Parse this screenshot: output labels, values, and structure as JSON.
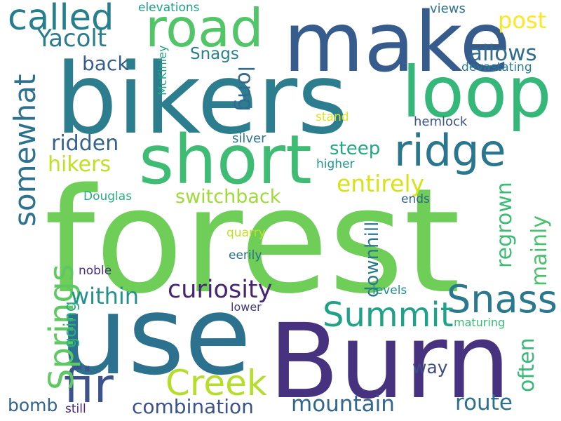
{
  "words": [
    {
      "text": "forest",
      "color": "#6ece58"
    },
    {
      "text": "bikers",
      "color": "#2c7e8e"
    },
    {
      "text": "Burn",
      "color": "#46327e"
    },
    {
      "text": "use",
      "color": "#2c728e"
    },
    {
      "text": "make",
      "color": "#365c8d"
    },
    {
      "text": "loop",
      "color": "#35b779"
    },
    {
      "text": "short",
      "color": "#3ebc73"
    },
    {
      "text": "road",
      "color": "#52c569"
    },
    {
      "text": "ridge",
      "color": "#2a768e"
    },
    {
      "text": "called",
      "color": "#277f8e"
    },
    {
      "text": "fir",
      "color": "#3b528b"
    },
    {
      "text": "Creek",
      "color": "#b5de2b"
    },
    {
      "text": "Snass",
      "color": "#2a788e"
    },
    {
      "text": "Summit",
      "color": "#1fa287"
    },
    {
      "text": "Springs",
      "color": "#5ec962"
    },
    {
      "text": "somewhat",
      "color": "#2c728e"
    },
    {
      "text": "Yacolt",
      "color": "#287c8e"
    },
    {
      "text": "curiosity",
      "color": "#482475"
    },
    {
      "text": "mountain",
      "color": "#31668e"
    },
    {
      "text": "combination",
      "color": "#3b528b"
    },
    {
      "text": "route",
      "color": "#2d708e"
    },
    {
      "text": "allows",
      "color": "#2f6c8e"
    },
    {
      "text": "post",
      "color": "#fde725"
    },
    {
      "text": "entirely",
      "color": "#d8e219"
    },
    {
      "text": "regrown",
      "color": "#3dbc74"
    },
    {
      "text": "mainly",
      "color": "#4ac16d"
    },
    {
      "text": "often",
      "color": "#38b977"
    },
    {
      "text": "switchback",
      "color": "#a0da39"
    },
    {
      "text": "within",
      "color": "#21918c"
    },
    {
      "text": "ridden",
      "color": "#33638d"
    },
    {
      "text": "hikers",
      "color": "#c0df25"
    },
    {
      "text": "steep",
      "color": "#22a785"
    },
    {
      "text": "long",
      "color": "#306a8e"
    },
    {
      "text": "back",
      "color": "#365d8d"
    },
    {
      "text": "Snags",
      "color": "#26828e"
    },
    {
      "text": "downhill",
      "color": "#2a788e"
    },
    {
      "text": "going",
      "color": "#29af7f"
    },
    {
      "text": "way",
      "color": "#3e4c8a"
    },
    {
      "text": "bomb",
      "color": "#32648e"
    },
    {
      "text": "elevations",
      "color": "#1fa088"
    },
    {
      "text": "views",
      "color": "#2d718e"
    },
    {
      "text": "devastating",
      "color": "#287d8e"
    },
    {
      "text": "McKinley",
      "color": "#1fa187"
    },
    {
      "text": "hemlock",
      "color": "#3a548c"
    },
    {
      "text": "stand",
      "color": "#e2e418"
    },
    {
      "text": "silver",
      "color": "#2a788e"
    },
    {
      "text": "higher",
      "color": "#1f998a"
    },
    {
      "text": "Douglas",
      "color": "#27ad81"
    },
    {
      "text": "ends",
      "color": "#33638d"
    },
    {
      "text": "quarry",
      "color": "#c2df23"
    },
    {
      "text": "eerily",
      "color": "#2d708e"
    },
    {
      "text": "noble",
      "color": "#472d7b"
    },
    {
      "text": "levels",
      "color": "#228c8d"
    },
    {
      "text": "lower",
      "color": "#453781"
    },
    {
      "text": "maturing",
      "color": "#3aba76"
    },
    {
      "text": "still",
      "color": "#482878"
    }
  ]
}
